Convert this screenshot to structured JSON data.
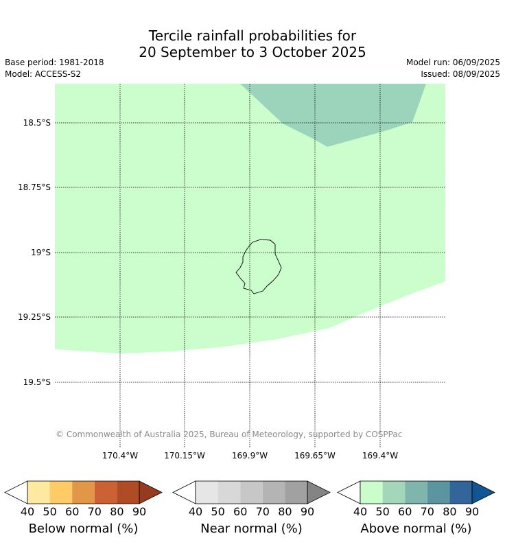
{
  "header": {
    "title_line1": "Tercile rainfall probabilities for",
    "title_line2": "20 September to 3 October 2025",
    "base_period": "Base period: 1981-2018",
    "model": "Model: ACCESS-S2",
    "model_run": "Model run: 06/09/2025",
    "issued": "Issued: 08/09/2025"
  },
  "map": {
    "lat_labels": [
      "18.5°S",
      "18.75°S",
      "19°S",
      "19.25°S",
      "19.5°S"
    ],
    "lon_labels": [
      "170.4°W",
      "170.15°W",
      "169.9°W",
      "169.65°W",
      "169.4°W"
    ],
    "copyright": "© Commonwealth of Australia 2025, Bureau of Meteorology, supported by COSPPac",
    "regions": [
      {
        "category": "Above normal",
        "probability_range": "40-50",
        "color": "#ccfdcc"
      },
      {
        "category": "Above normal",
        "probability_range": "50-60",
        "color": "#9cd3bb"
      }
    ]
  },
  "colorbars": [
    {
      "label": "Below normal (%)",
      "ticks": [
        "40",
        "50",
        "60",
        "70",
        "80",
        "90"
      ],
      "colors": [
        "#ffffff",
        "#fee9a0",
        "#fecb66",
        "#e29647",
        "#cc6133",
        "#b04c25",
        "#963a20"
      ]
    },
    {
      "label": "Near normal (%)",
      "ticks": [
        "40",
        "50",
        "60",
        "70",
        "80",
        "90"
      ],
      "colors": [
        "#ffffff",
        "#e6e6e6",
        "#d8d8d8",
        "#c7c7c7",
        "#b4b4b4",
        "#a1a1a1",
        "#848484"
      ]
    },
    {
      "label": "Above normal (%)",
      "ticks": [
        "40",
        "50",
        "60",
        "70",
        "80",
        "90"
      ],
      "colors": [
        "#ffffff",
        "#cbfdcc",
        "#a4d6b9",
        "#7fb5ad",
        "#5b95a0",
        "#32659a",
        "#115592"
      ]
    }
  ]
}
